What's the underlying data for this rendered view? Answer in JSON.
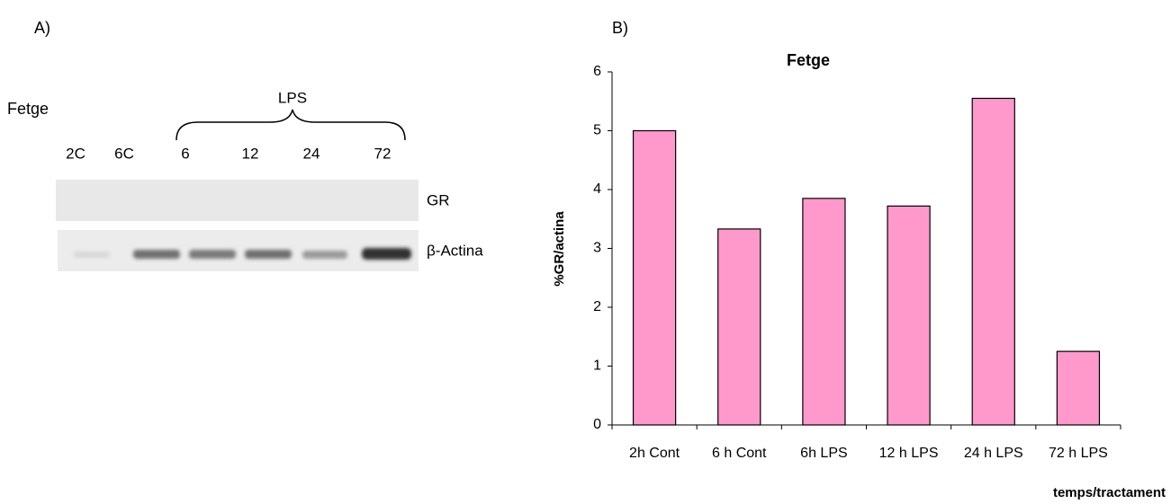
{
  "panel_a": {
    "label": "A)",
    "tissue": "Fetge",
    "treatment": "LPS",
    "lanes": [
      "2C",
      "6C",
      "6",
      "12",
      "24",
      "72"
    ],
    "rows": [
      "GR",
      "β-Actina"
    ]
  },
  "panel_b_label": "B)",
  "chart_data": {
    "type": "bar",
    "title": "Fetge",
    "x_label": "temps/tractament",
    "y_label": "%GR/actina",
    "categories": [
      "2h Cont",
      "6 h Cont",
      "6h LPS",
      "12 h LPS",
      "24 h LPS",
      "72 h LPS"
    ],
    "values": [
      5.0,
      3.33,
      3.85,
      3.72,
      5.55,
      1.25
    ],
    "color": "#ff99cc",
    "ylim": [
      0,
      6
    ],
    "yticks": [
      0,
      1,
      2,
      3,
      4,
      5,
      6
    ],
    "grid": false
  }
}
